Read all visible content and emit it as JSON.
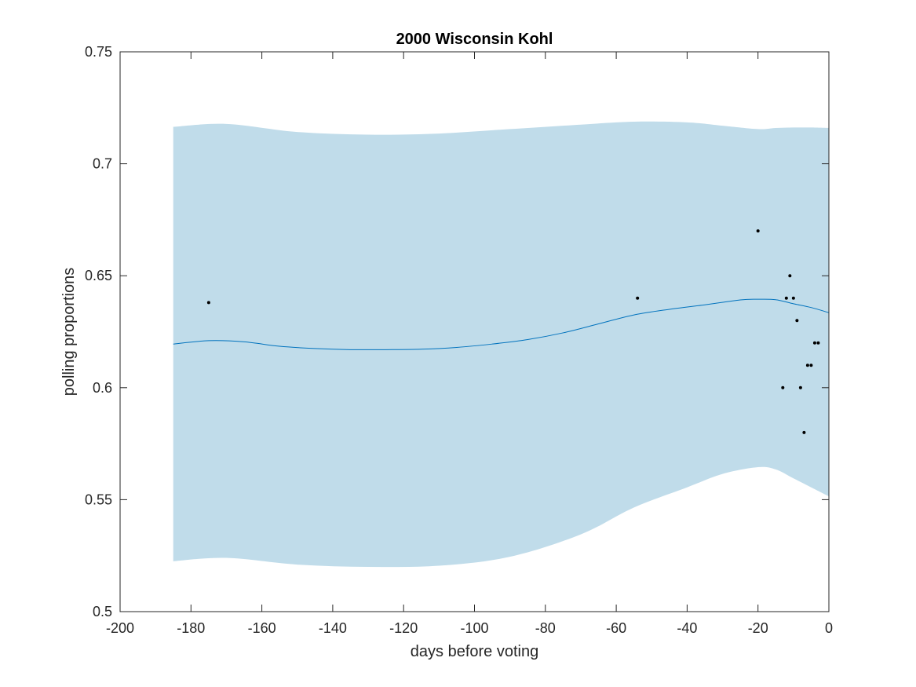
{
  "chart_data": {
    "type": "line",
    "title": "2000 Wisconsin Kohl",
    "xlabel": "days before voting",
    "ylabel": "polling proportions",
    "xlim": [
      -200,
      0
    ],
    "ylim": [
      0.5,
      0.75
    ],
    "xticks": [
      -200,
      -180,
      -160,
      -140,
      -120,
      -100,
      -80,
      -60,
      -40,
      -20,
      0
    ],
    "xtick_labels": [
      "-200",
      "-180",
      "-160",
      "-140",
      "-120",
      "-100",
      "-80",
      "-60",
      "-40",
      "-20",
      "0"
    ],
    "yticks": [
      0.5,
      0.55,
      0.6,
      0.65,
      0.7,
      0.75
    ],
    "ytick_labels": [
      "0.5",
      "0.55",
      "0.6",
      "0.65",
      "0.7",
      "0.75"
    ],
    "grid": false,
    "colors": {
      "band": "#c0dcea",
      "line": "#0072bd",
      "points": "#000000",
      "axes": "#262626"
    },
    "band": {
      "x": [
        -185,
        -170,
        -150,
        -130,
        -110,
        -90,
        -70,
        -55,
        -40,
        -30,
        -20,
        -15,
        -10,
        -5,
        0
      ],
      "upper": [
        0.7165,
        0.7178,
        0.7142,
        0.713,
        0.7135,
        0.7155,
        0.7175,
        0.7188,
        0.7185,
        0.717,
        0.7155,
        0.716,
        0.7162,
        0.7162,
        0.716
      ],
      "lower": [
        0.5225,
        0.524,
        0.521,
        0.52,
        0.5205,
        0.5245,
        0.5345,
        0.5465,
        0.5555,
        0.5615,
        0.5645,
        0.5635,
        0.5595,
        0.5555,
        0.5515
      ]
    },
    "series": [
      {
        "x": [
          -185,
          -175,
          -165,
          -155,
          -145,
          -135,
          -125,
          -115,
          -105,
          -95,
          -85,
          -75,
          -65,
          -55,
          -45,
          -35,
          -25,
          -20,
          -15,
          -10,
          -5,
          0
        ],
        "values": [
          0.6195,
          0.621,
          0.6205,
          0.6185,
          0.6175,
          0.617,
          0.617,
          0.6172,
          0.618,
          0.6195,
          0.6215,
          0.6245,
          0.6285,
          0.6325,
          0.635,
          0.637,
          0.6392,
          0.6395,
          0.6393,
          0.6375,
          0.6358,
          0.6335
        ]
      }
    ],
    "points": {
      "x": [
        -175,
        -54,
        -20,
        -13,
        -12,
        -11,
        -10,
        -9,
        -8,
        -7,
        -6,
        -5,
        -4,
        -3
      ],
      "y": [
        0.638,
        0.64,
        0.67,
        0.6,
        0.64,
        0.65,
        0.64,
        0.63,
        0.6,
        0.58,
        0.61,
        0.61,
        0.62,
        0.62
      ]
    }
  }
}
